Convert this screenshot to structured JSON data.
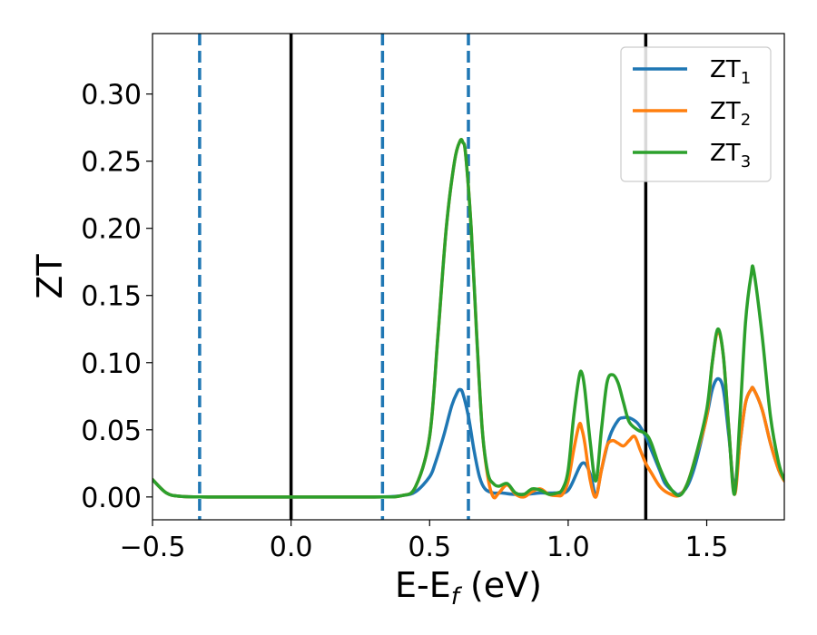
{
  "chart_data": {
    "type": "line",
    "xlabel_main": "E-E",
    "xlabel_sub": "f",
    "xlabel_unit": " (eV)",
    "ylabel": "ZT",
    "xlim": [
      -0.5,
      1.78
    ],
    "ylim": [
      -0.017,
      0.345
    ],
    "xticks": [
      -0.5,
      0.0,
      0.5,
      1.0,
      1.5
    ],
    "xtick_labels": [
      "−0.5",
      "0.0",
      "0.5",
      "1.0",
      "1.5"
    ],
    "yticks": [
      0.0,
      0.05,
      0.1,
      0.15,
      0.2,
      0.25,
      0.3
    ],
    "ytick_labels": [
      "0.00",
      "0.05",
      "0.10",
      "0.15",
      "0.20",
      "0.25",
      "0.30"
    ],
    "grid": false,
    "legend_position": "top-right",
    "vlines": [
      {
        "x": -0.33,
        "style": "dashed",
        "color": "#1f77b4"
      },
      {
        "x": 0.0,
        "style": "solid",
        "color": "#000000"
      },
      {
        "x": 0.33,
        "style": "dashed",
        "color": "#1f77b4"
      },
      {
        "x": 0.64,
        "style": "dashed",
        "color": "#1f77b4"
      },
      {
        "x": 1.28,
        "style": "solid",
        "color": "#000000"
      }
    ],
    "series": [
      {
        "name": "ZT",
        "sub": "1",
        "color": "#1f77b4",
        "x": [
          -0.5,
          -0.45,
          -0.4,
          -0.3,
          0.0,
          0.3,
          0.4,
          0.45,
          0.5,
          0.52,
          0.55,
          0.58,
          0.6,
          0.61,
          0.62,
          0.64,
          0.66,
          0.68,
          0.7,
          0.73,
          0.76,
          0.8,
          0.85,
          0.9,
          0.95,
          1.0,
          1.05,
          1.08,
          1.1,
          1.12,
          1.15,
          1.18,
          1.2,
          1.22,
          1.25,
          1.28,
          1.3,
          1.33,
          1.35,
          1.38,
          1.4,
          1.43,
          1.46,
          1.5,
          1.52,
          1.54,
          1.56,
          1.58,
          1.6,
          1.62,
          1.64,
          1.66,
          1.67,
          1.7,
          1.73,
          1.76,
          1.78
        ],
        "y": [
          0.013,
          0.003,
          0.0005,
          0.0,
          0.0,
          0.0,
          0.001,
          0.004,
          0.015,
          0.025,
          0.045,
          0.068,
          0.078,
          0.08,
          0.077,
          0.06,
          0.035,
          0.015,
          0.006,
          0.003,
          0.003,
          0.002,
          0.002,
          0.003,
          0.003,
          0.005,
          0.025,
          0.017,
          0.001,
          0.02,
          0.045,
          0.057,
          0.059,
          0.059,
          0.055,
          0.045,
          0.035,
          0.02,
          0.01,
          0.004,
          0.002,
          0.008,
          0.025,
          0.06,
          0.08,
          0.088,
          0.08,
          0.045,
          0.008,
          0.04,
          0.07,
          0.08,
          0.08,
          0.065,
          0.04,
          0.02,
          0.012
        ]
      },
      {
        "name": "ZT",
        "sub": "2",
        "color": "#ff7f0e",
        "x": [
          -0.5,
          -0.45,
          -0.4,
          -0.3,
          0.0,
          0.3,
          0.4,
          0.45,
          0.5,
          0.53,
          0.56,
          0.59,
          0.61,
          0.62,
          0.63,
          0.65,
          0.67,
          0.69,
          0.71,
          0.73,
          0.75,
          0.78,
          0.81,
          0.84,
          0.87,
          0.9,
          0.93,
          0.96,
          0.98,
          1.0,
          1.02,
          1.04,
          1.05,
          1.06,
          1.08,
          1.1,
          1.12,
          1.14,
          1.16,
          1.18,
          1.2,
          1.22,
          1.24,
          1.26,
          1.28,
          1.3,
          1.33,
          1.36,
          1.4,
          1.43,
          1.46,
          1.5,
          1.52,
          1.54,
          1.56,
          1.58,
          1.6,
          1.62,
          1.64,
          1.66,
          1.67,
          1.7,
          1.73,
          1.76,
          1.78
        ],
        "y": [
          0.013,
          0.003,
          0.0005,
          0.0,
          0.0,
          0.0,
          0.001,
          0.008,
          0.045,
          0.12,
          0.2,
          0.25,
          0.265,
          0.264,
          0.255,
          0.2,
          0.12,
          0.05,
          0.015,
          0.0,
          0.003,
          0.009,
          0.002,
          0.0,
          0.004,
          0.006,
          0.002,
          0.001,
          0.002,
          0.012,
          0.035,
          0.054,
          0.05,
          0.04,
          0.012,
          0.0,
          0.02,
          0.038,
          0.042,
          0.04,
          0.038,
          0.042,
          0.045,
          0.035,
          0.025,
          0.018,
          0.008,
          0.003,
          0.001,
          0.01,
          0.03,
          0.06,
          0.1,
          0.123,
          0.105,
          0.05,
          0.002,
          0.04,
          0.07,
          0.08,
          0.08,
          0.065,
          0.04,
          0.02,
          0.012
        ]
      },
      {
        "name": "ZT",
        "sub": "3",
        "color": "#2ca02c",
        "x": [
          -0.5,
          -0.45,
          -0.4,
          -0.3,
          0.0,
          0.3,
          0.4,
          0.45,
          0.5,
          0.53,
          0.56,
          0.59,
          0.61,
          0.62,
          0.63,
          0.65,
          0.67,
          0.69,
          0.71,
          0.73,
          0.75,
          0.78,
          0.81,
          0.84,
          0.87,
          0.9,
          0.93,
          0.96,
          0.98,
          1.0,
          1.02,
          1.04,
          1.05,
          1.06,
          1.08,
          1.1,
          1.12,
          1.14,
          1.16,
          1.18,
          1.2,
          1.22,
          1.25,
          1.28,
          1.3,
          1.33,
          1.36,
          1.4,
          1.43,
          1.46,
          1.5,
          1.52,
          1.54,
          1.56,
          1.58,
          1.6,
          1.62,
          1.64,
          1.66,
          1.67,
          1.7,
          1.73,
          1.76,
          1.78
        ],
        "y": [
          0.013,
          0.003,
          0.0005,
          0.0,
          0.0,
          0.0,
          0.001,
          0.008,
          0.045,
          0.12,
          0.2,
          0.25,
          0.265,
          0.264,
          0.255,
          0.2,
          0.12,
          0.05,
          0.018,
          0.01,
          0.008,
          0.01,
          0.003,
          0.002,
          0.006,
          0.005,
          0.002,
          0.003,
          0.006,
          0.02,
          0.06,
          0.09,
          0.092,
          0.08,
          0.04,
          0.012,
          0.05,
          0.085,
          0.091,
          0.085,
          0.07,
          0.056,
          0.05,
          0.047,
          0.04,
          0.022,
          0.009,
          0.001,
          0.01,
          0.03,
          0.065,
          0.1,
          0.125,
          0.105,
          0.05,
          0.002,
          0.06,
          0.13,
          0.165,
          0.168,
          0.12,
          0.06,
          0.025,
          0.013
        ]
      }
    ]
  }
}
